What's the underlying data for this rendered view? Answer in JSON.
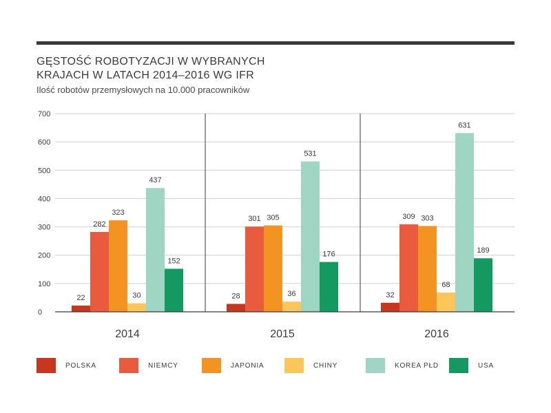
{
  "header": {
    "title_line1": "GĘSTOŚĆ ROBOTYZACJI W WYBRANYCH",
    "title_line2": "KRAJACH W LATACH 2014–2016 WG IFR",
    "subtitle": "Ilość robotów przemysłowych na 10.000 pracowników"
  },
  "chart_data": {
    "type": "bar",
    "title": "GĘSTOŚĆ ROBOTYZACJI W WYBRANYCH KRAJACH W LATACH 2014–2016 WG IFR",
    "subtitle": "Ilość robotów przemysłowych na 10.000 pracowników",
    "categories": [
      "2014",
      "2015",
      "2016"
    ],
    "ylim": [
      0,
      700
    ],
    "yticks": [
      0,
      100,
      200,
      300,
      400,
      500,
      600,
      700
    ],
    "grid": true,
    "legend_position": "bottom",
    "series": [
      {
        "name": "POLSKA",
        "color": "#c9361f",
        "values": [
          22,
          28,
          32
        ]
      },
      {
        "name": "NIEMCY",
        "color": "#ea5a3c",
        "values": [
          282,
          301,
          309
        ]
      },
      {
        "name": "JAPONIA",
        "color": "#f39321",
        "values": [
          323,
          305,
          303
        ]
      },
      {
        "name": "CHINY",
        "color": "#fcc65a",
        "values": [
          30,
          36,
          68
        ]
      },
      {
        "name": "KOREA PŁD",
        "color": "#9fd6c3",
        "values": [
          437,
          531,
          631
        ]
      },
      {
        "name": "USA",
        "color": "#149a61",
        "values": [
          152,
          176,
          189
        ]
      }
    ]
  }
}
